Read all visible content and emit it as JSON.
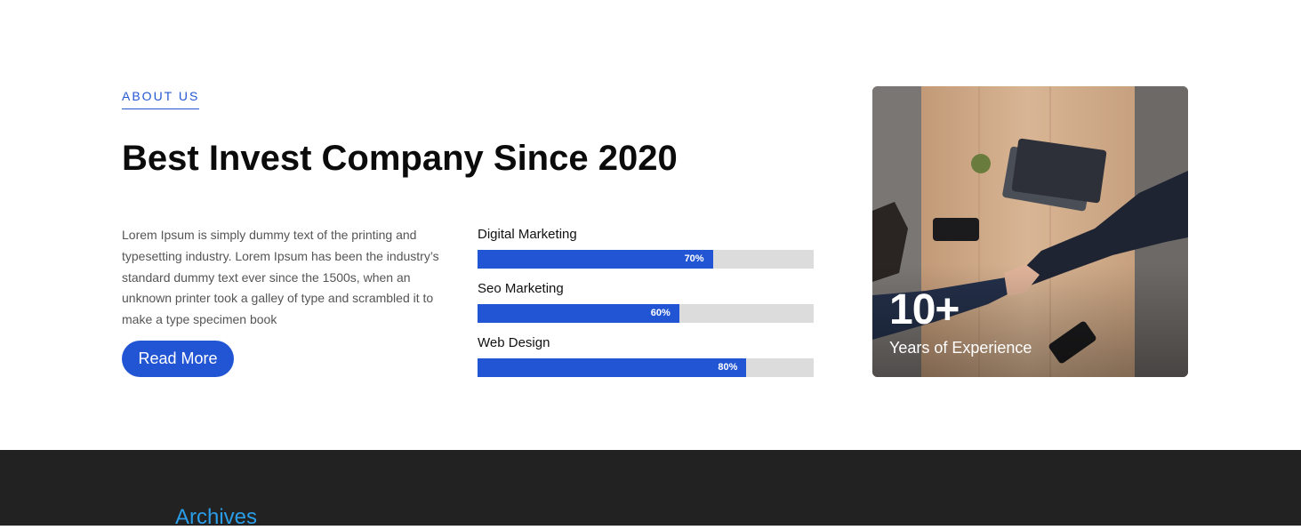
{
  "about": {
    "eyebrow": "ABOUT US",
    "headline": "Best Invest Company Since 2020",
    "description": "Lorem Ipsum is simply dummy text of the printing and typesetting industry. Lorem Ipsum has been the industry’s standard dummy text ever since the 1500s, when an unknown printer took a galley of type and scrambled it to make a type specimen book",
    "read_more_label": "Read More",
    "skills": [
      {
        "name": "Digital Marketing",
        "percent": 70,
        "percent_label": "70%"
      },
      {
        "name": "Seo Marketing",
        "percent": 60,
        "percent_label": "60%"
      },
      {
        "name": "Web Design",
        "percent": 80,
        "percent_label": "80%"
      }
    ],
    "stat": {
      "number": "10+",
      "label": "Years of Experience"
    },
    "image_icon": "handshake-photo"
  },
  "footer": {
    "archives_title": "Archives"
  },
  "colors": {
    "accent": "#2255d4",
    "track": "#dcdcdc",
    "footer_bg": "#222222",
    "archives_title": "#2a9de8"
  }
}
